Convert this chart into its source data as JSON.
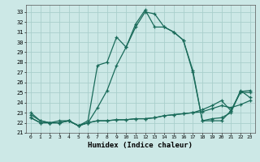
{
  "xlabel": "Humidex (Indice chaleur)",
  "bg_color": "#cce8e6",
  "grid_color": "#aacfcc",
  "line_color": "#1a6b5a",
  "xlim": [
    -0.5,
    23.5
  ],
  "ylim": [
    21.0,
    33.7
  ],
  "xticks": [
    0,
    1,
    2,
    3,
    4,
    5,
    6,
    7,
    8,
    9,
    10,
    11,
    12,
    13,
    14,
    15,
    16,
    17,
    18,
    19,
    20,
    21,
    22,
    23
  ],
  "yticks": [
    21,
    22,
    23,
    24,
    25,
    26,
    27,
    28,
    29,
    30,
    31,
    32,
    33
  ],
  "series": [
    [
      23.0,
      22.2,
      22.0,
      22.0,
      22.2,
      21.7,
      22.0,
      23.5,
      25.2,
      27.7,
      29.5,
      31.5,
      33.0,
      32.8,
      31.5,
      31.0,
      30.2,
      27.0,
      22.2,
      22.2,
      22.2,
      23.2,
      25.0,
      25.0
    ],
    [
      22.8,
      22.2,
      22.0,
      22.2,
      22.2,
      21.7,
      22.2,
      27.7,
      28.0,
      30.5,
      29.5,
      31.8,
      33.2,
      31.5,
      31.5,
      31.0,
      30.2,
      27.2,
      22.2,
      22.4,
      22.5,
      23.0,
      25.2,
      24.5
    ],
    [
      22.5,
      22.0,
      22.0,
      22.0,
      22.2,
      21.7,
      22.0,
      22.2,
      22.2,
      22.3,
      22.3,
      22.4,
      22.4,
      22.5,
      22.7,
      22.8,
      22.9,
      23.0,
      23.1,
      23.4,
      23.7,
      23.5,
      23.8,
      24.2
    ],
    [
      22.5,
      22.0,
      22.0,
      22.0,
      22.2,
      21.7,
      22.0,
      22.2,
      22.2,
      22.3,
      22.3,
      22.4,
      22.4,
      22.5,
      22.7,
      22.8,
      22.9,
      23.0,
      23.3,
      23.7,
      24.2,
      23.2,
      25.1,
      25.2
    ]
  ]
}
